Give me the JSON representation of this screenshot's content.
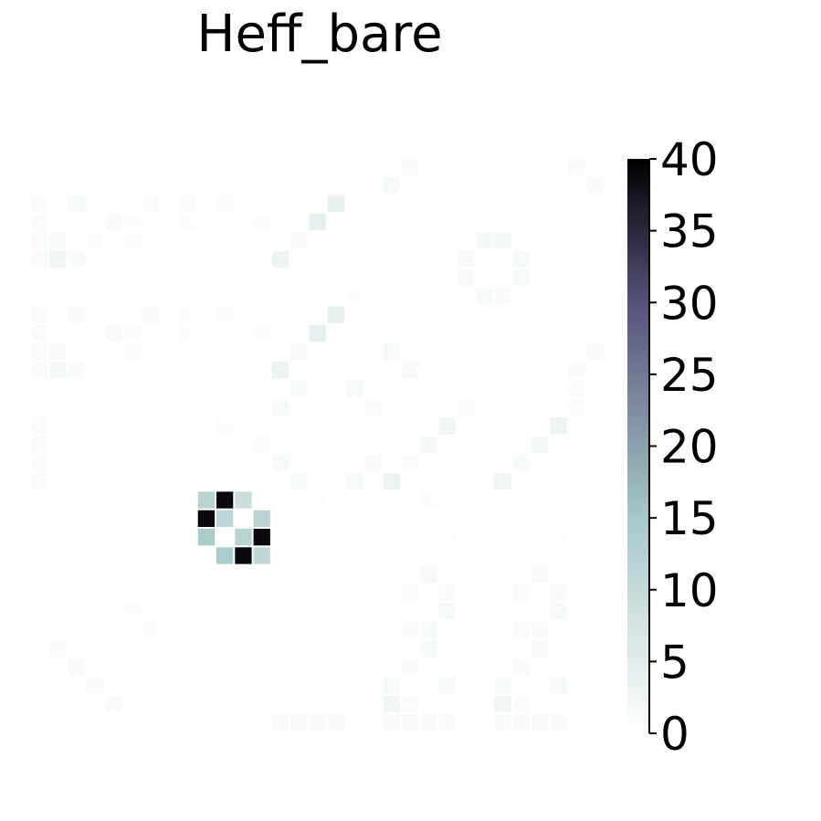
{
  "chart_data": {
    "type": "heatmap",
    "title": "Heff_bare",
    "rows": 32,
    "cols": 32,
    "colormap": "bone_r",
    "colors": {
      "low": "#ffffff",
      "mid": "#a6c8c7",
      "upper": "#555279",
      "high": "#000000"
    },
    "grid": false,
    "axes_visible": false,
    "colorbar": {
      "range": [
        0,
        40
      ],
      "ticks": [
        "0",
        "5",
        "10",
        "15",
        "20",
        "25",
        "30",
        "35",
        "40"
      ],
      "placement": "right"
    },
    "cells": [
      [
        0,
        20,
        1
      ],
      [
        1,
        19,
        1.5
      ],
      [
        0,
        29,
        1
      ],
      [
        1,
        30,
        1
      ],
      [
        2,
        0,
        0.8
      ],
      [
        2,
        2,
        1.5
      ],
      [
        2,
        6,
        0.8
      ],
      [
        2,
        8,
        0.8
      ],
      [
        2,
        10,
        0.6
      ],
      [
        2,
        16,
        3.5
      ],
      [
        3,
        0,
        0.8
      ],
      [
        3,
        4,
        1.2
      ],
      [
        3,
        5,
        0.6
      ],
      [
        3,
        8,
        0.6
      ],
      [
        3,
        12,
        0.6
      ],
      [
        3,
        15,
        4
      ],
      [
        4,
        0,
        0.8
      ],
      [
        4,
        1,
        1.2
      ],
      [
        4,
        3,
        0.6
      ],
      [
        4,
        5,
        0.6
      ],
      [
        4,
        7,
        0.5
      ],
      [
        4,
        14,
        1
      ],
      [
        4,
        24,
        2
      ],
      [
        4,
        25,
        2
      ],
      [
        5,
        0,
        0.8
      ],
      [
        5,
        1,
        2.5
      ],
      [
        5,
        2,
        1.2
      ],
      [
        5,
        13,
        3
      ],
      [
        5,
        23,
        1.5
      ],
      [
        5,
        26,
        1.5
      ],
      [
        6,
        23,
        1.5
      ],
      [
        6,
        26,
        1.5
      ],
      [
        7,
        17,
        0.6
      ],
      [
        7,
        24,
        1.5
      ],
      [
        7,
        25,
        1
      ],
      [
        8,
        0,
        0.8
      ],
      [
        8,
        2,
        1
      ],
      [
        8,
        6,
        1
      ],
      [
        8,
        8,
        0.6
      ],
      [
        8,
        10,
        0.6
      ],
      [
        8,
        16,
        3.5
      ],
      [
        9,
        0,
        0.8
      ],
      [
        9,
        4,
        1.2
      ],
      [
        9,
        5,
        0.6
      ],
      [
        9,
        8,
        0.6
      ],
      [
        9,
        12,
        0.6
      ],
      [
        9,
        15,
        4
      ],
      [
        10,
        0,
        0.8
      ],
      [
        10,
        1,
        1
      ],
      [
        10,
        3,
        0.5
      ],
      [
        10,
        5,
        0.6
      ],
      [
        10,
        7,
        0.5
      ],
      [
        10,
        14,
        1
      ],
      [
        10,
        19,
        1.5
      ],
      [
        10,
        30,
        1
      ],
      [
        11,
        0,
        0.8
      ],
      [
        11,
        1,
        2
      ],
      [
        11,
        2,
        1
      ],
      [
        11,
        13,
        3
      ],
      [
        11,
        20,
        1.5
      ],
      [
        11,
        29,
        1
      ],
      [
        12,
        14,
        1.5
      ],
      [
        12,
        17,
        1.5
      ],
      [
        12,
        29,
        0.8
      ],
      [
        13,
        13,
        1.5
      ],
      [
        13,
        18,
        1
      ],
      [
        13,
        23,
        0.8
      ],
      [
        13,
        29,
        0.8
      ],
      [
        14,
        0,
        0.8
      ],
      [
        14,
        10,
        0.6
      ],
      [
        14,
        22,
        2.5
      ],
      [
        14,
        28,
        3
      ],
      [
        15,
        0,
        0.8
      ],
      [
        15,
        12,
        0.6
      ],
      [
        15,
        21,
        2
      ],
      [
        15,
        27,
        2
      ],
      [
        16,
        0,
        0.8
      ],
      [
        16,
        13,
        1.5
      ],
      [
        16,
        18,
        1
      ],
      [
        16,
        20,
        0.8
      ],
      [
        16,
        26,
        1.2
      ],
      [
        17,
        0,
        0.8
      ],
      [
        17,
        14,
        1.5
      ],
      [
        17,
        17,
        1.5
      ],
      [
        17,
        19,
        3
      ],
      [
        17,
        25,
        2.5
      ],
      [
        18,
        9,
        12
      ],
      [
        18,
        10,
        39
      ],
      [
        18,
        11,
        9
      ],
      [
        18,
        15,
        0.5
      ],
      [
        18,
        21,
        0.6
      ],
      [
        18,
        27,
        0.5
      ],
      [
        19,
        9,
        39
      ],
      [
        19,
        10,
        11
      ],
      [
        19,
        12,
        12
      ],
      [
        20,
        9,
        14
      ],
      [
        20,
        11,
        12
      ],
      [
        20,
        12,
        39
      ],
      [
        20,
        16,
        0.5
      ],
      [
        20,
        22,
        0.5
      ],
      [
        20,
        28,
        0.5
      ],
      [
        21,
        10,
        14
      ],
      [
        21,
        11,
        39
      ],
      [
        21,
        12,
        11
      ],
      [
        22,
        21,
        1.5
      ],
      [
        22,
        27,
        1
      ],
      [
        23,
        20,
        0.8
      ],
      [
        23,
        22,
        1
      ],
      [
        23,
        26,
        0.8
      ],
      [
        23,
        28,
        1
      ],
      [
        24,
        5,
        0.6
      ],
      [
        24,
        22,
        1.5
      ],
      [
        24,
        28,
        1.5
      ],
      [
        25,
        6,
        0.6
      ],
      [
        25,
        20,
        1
      ],
      [
        25,
        21,
        1.2
      ],
      [
        25,
        26,
        0.8
      ],
      [
        25,
        27,
        1
      ],
      [
        26,
        1,
        1
      ],
      [
        26,
        21,
        1.5
      ],
      [
        26,
        27,
        1.5
      ],
      [
        27,
        2,
        1
      ],
      [
        27,
        20,
        1
      ],
      [
        27,
        26,
        1
      ],
      [
        28,
        3,
        1.2
      ],
      [
        28,
        19,
        1.5
      ],
      [
        28,
        22,
        1.5
      ],
      [
        28,
        25,
        1.5
      ],
      [
        28,
        28,
        1.5
      ],
      [
        29,
        4,
        1.2
      ],
      [
        29,
        19,
        2.5
      ],
      [
        29,
        20,
        0.8
      ],
      [
        29,
        25,
        2.5
      ],
      [
        29,
        26,
        0.8
      ],
      [
        30,
        13,
        1
      ],
      [
        30,
        14,
        1
      ],
      [
        30,
        15,
        1
      ],
      [
        30,
        16,
        1
      ],
      [
        30,
        19,
        1
      ],
      [
        30,
        20,
        1
      ],
      [
        30,
        21,
        1
      ],
      [
        30,
        22,
        1
      ],
      [
        30,
        25,
        1
      ],
      [
        30,
        26,
        1
      ],
      [
        30,
        27,
        1
      ],
      [
        30,
        28,
        1
      ]
    ]
  }
}
